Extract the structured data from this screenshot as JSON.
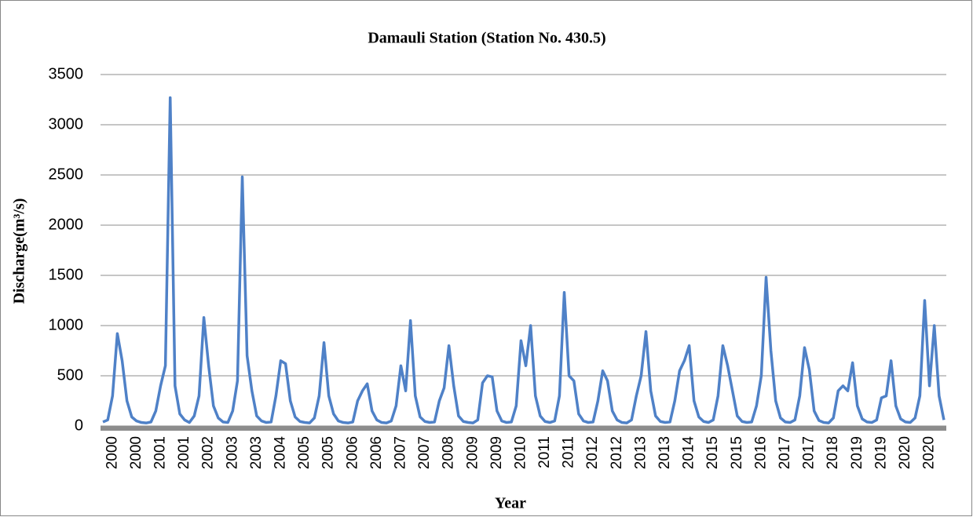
{
  "chart_data": {
    "type": "line",
    "title": "Damauli Station (Station No. 430.5)",
    "x_label": "Year",
    "y_label": "Discharge(m³/s)",
    "categories": [
      null,
      null,
      "2000",
      null,
      null,
      null,
      null,
      "2000",
      null,
      null,
      null,
      null,
      "2001",
      null,
      null,
      null,
      null,
      "2001",
      null,
      null,
      null,
      null,
      "2002",
      null,
      null,
      null,
      null,
      "2003",
      null,
      null,
      null,
      null,
      "2003",
      null,
      null,
      null,
      null,
      "2004",
      null,
      null,
      null,
      null,
      "2005",
      null,
      null,
      null,
      null,
      "2005",
      null,
      null,
      null,
      null,
      "2006",
      null,
      null,
      null,
      null,
      "2006",
      null,
      null,
      null,
      null,
      "2007",
      null,
      null,
      null,
      null,
      "2007",
      null,
      null,
      null,
      null,
      "2008",
      null,
      null,
      null,
      null,
      "2009",
      null,
      null,
      null,
      null,
      "2009",
      null,
      null,
      null,
      null,
      "2010",
      null,
      null,
      null,
      null,
      "2011",
      null,
      null,
      null,
      null,
      "2011",
      null,
      null,
      null,
      null,
      "2012",
      null,
      null,
      null,
      null,
      "2012",
      null,
      null,
      null,
      null,
      "2013",
      null,
      null,
      null,
      null,
      "2013",
      null,
      null,
      null,
      null,
      "2014",
      null,
      null,
      null,
      null,
      "2015",
      null,
      null,
      null,
      null,
      "2015",
      null,
      null,
      null,
      null,
      "2016",
      null,
      null,
      null,
      null,
      "2017",
      null,
      null,
      null,
      null,
      "2017",
      null,
      null,
      null,
      null,
      "2018",
      null,
      null,
      null,
      null,
      "2019",
      null,
      null,
      null,
      null,
      "2019",
      null,
      null,
      null,
      null,
      "2020",
      null,
      null,
      null,
      null,
      "2020",
      null,
      null,
      null
    ],
    "values": [
      40,
      60,
      300,
      920,
      650,
      250,
      90,
      50,
      35,
      30,
      40,
      150,
      400,
      600,
      3270,
      400,
      120,
      60,
      35,
      100,
      300,
      1080,
      600,
      200,
      80,
      40,
      35,
      150,
      450,
      2480,
      700,
      350,
      100,
      50,
      35,
      40,
      300,
      650,
      620,
      250,
      90,
      45,
      35,
      30,
      80,
      300,
      830,
      300,
      120,
      50,
      35,
      30,
      40,
      250,
      350,
      420,
      150,
      60,
      35,
      30,
      50,
      200,
      600,
      350,
      1050,
      300,
      90,
      45,
      35,
      40,
      250,
      380,
      800,
      400,
      100,
      45,
      35,
      30,
      60,
      430,
      500,
      490,
      150,
      50,
      35,
      40,
      200,
      850,
      600,
      1000,
      300,
      100,
      45,
      35,
      50,
      300,
      1330,
      500,
      450,
      120,
      50,
      35,
      40,
      250,
      550,
      450,
      150,
      60,
      35,
      30,
      60,
      300,
      500,
      940,
      350,
      100,
      45,
      35,
      40,
      250,
      550,
      650,
      800,
      250,
      90,
      45,
      35,
      60,
      300,
      800,
      600,
      350,
      100,
      45,
      35,
      40,
      200,
      500,
      1480,
      750,
      250,
      80,
      40,
      35,
      60,
      300,
      780,
      560,
      150,
      55,
      35,
      30,
      80,
      350,
      400,
      350,
      630,
      200,
      70,
      40,
      35,
      60,
      280,
      300,
      650,
      200,
      70,
      40,
      35,
      80,
      300,
      1250,
      400,
      1000,
      300,
      60
    ],
    "color": "#4f81c7",
    "ylim": [
      0,
      3500
    ],
    "yticks": [
      0,
      500,
      1000,
      1500,
      2000,
      2500,
      3000,
      3500
    ],
    "grid": true
  }
}
